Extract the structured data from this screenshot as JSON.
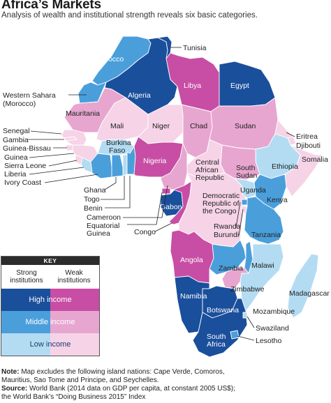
{
  "header": {
    "title": "Africa’s Markets",
    "subtitle": "Analysis of wealth and institutional strength reveals six basic categories."
  },
  "colors": {
    "strong_high": "#1a4f9c",
    "strong_middle": "#4a9fdb",
    "strong_low": "#b3dcf3",
    "weak_high": "#c74ea4",
    "weak_middle": "#e7a6cf",
    "weak_low": "#f6d3e7"
  },
  "countries": {
    "morocco": "Morocco",
    "algeria": "Algeria",
    "tunisia": "Tunisia",
    "libya": "Libya",
    "egypt": "Egypt",
    "western_sahara": "Western Sahara",
    "western_sahara_note": "(Morocco)",
    "mauritania": "Mauritania",
    "mali": "Mali",
    "niger": "Niger",
    "chad": "Chad",
    "sudan": "Sudan",
    "eritrea": "Eritrea",
    "djibouti": "Djibouti",
    "somalia": "Somalia",
    "ethiopia": "Ethiopia",
    "south_sudan_1": "South",
    "south_sudan_2": "Sudan",
    "car_1": "Central",
    "car_2": "African",
    "car_3": "Republic",
    "nigeria": "Nigeria",
    "burkina_1": "Burkina",
    "burkina_2": "Faso",
    "senegal": "Senegal",
    "gambia": "Gambia",
    "guinea_bissau": "Guinea-Bissau",
    "guinea": "Guinea",
    "sierra_leone": "Sierra Leone",
    "liberia": "Liberia",
    "ivory_coast": "Ivory Coast",
    "ghana": "Ghana",
    "togo": "Togo",
    "benin": "Benin",
    "cameroon": "Cameroon",
    "eq_guinea_1": "Equatorial",
    "eq_guinea_2": "Guinea",
    "gabon": "Gabon",
    "congo": "Congo",
    "drc_1": "Democratic",
    "drc_2": "Republic of",
    "drc_3": "the Congo",
    "uganda": "Uganda",
    "kenya": "Kenya",
    "rwanda": "Rwanda",
    "burundi": "Burundi",
    "tanzania": "Tanzania",
    "angola": "Angola",
    "zambia": "Zambia",
    "malawi": "Malawi",
    "zimbabwe": "Zimbabwe",
    "mozambique": "Mozambique",
    "madagascar": "Madagascar",
    "namibia": "Namibia",
    "botswana": "Botswana",
    "swaziland": "Swaziland",
    "lesotho": "Lesotho",
    "south_africa_1": "South",
    "south_africa_2": "Africa"
  },
  "key": {
    "title": "KEY",
    "col_strong_1": "Strong",
    "col_strong_2": "institutions",
    "col_weak_1": "Weak",
    "col_weak_2": "institutions",
    "row_high": "High income",
    "row_middle": "Middle income",
    "row_low": "Low income"
  },
  "notes": {
    "note_label": "Note:",
    "note_text": " Map excludes the following island nations: Cape Verde, Comoros,",
    "note_text_2": "Mauritius, Sao Tome and Principe, and Seychelles.",
    "source_label": "Source:",
    "source_text": " World Bank (2014 data on GDP per capita, at constant 2005 US$);",
    "source_text_2": "the World Bank’s “Doing Business 2015” Index"
  }
}
